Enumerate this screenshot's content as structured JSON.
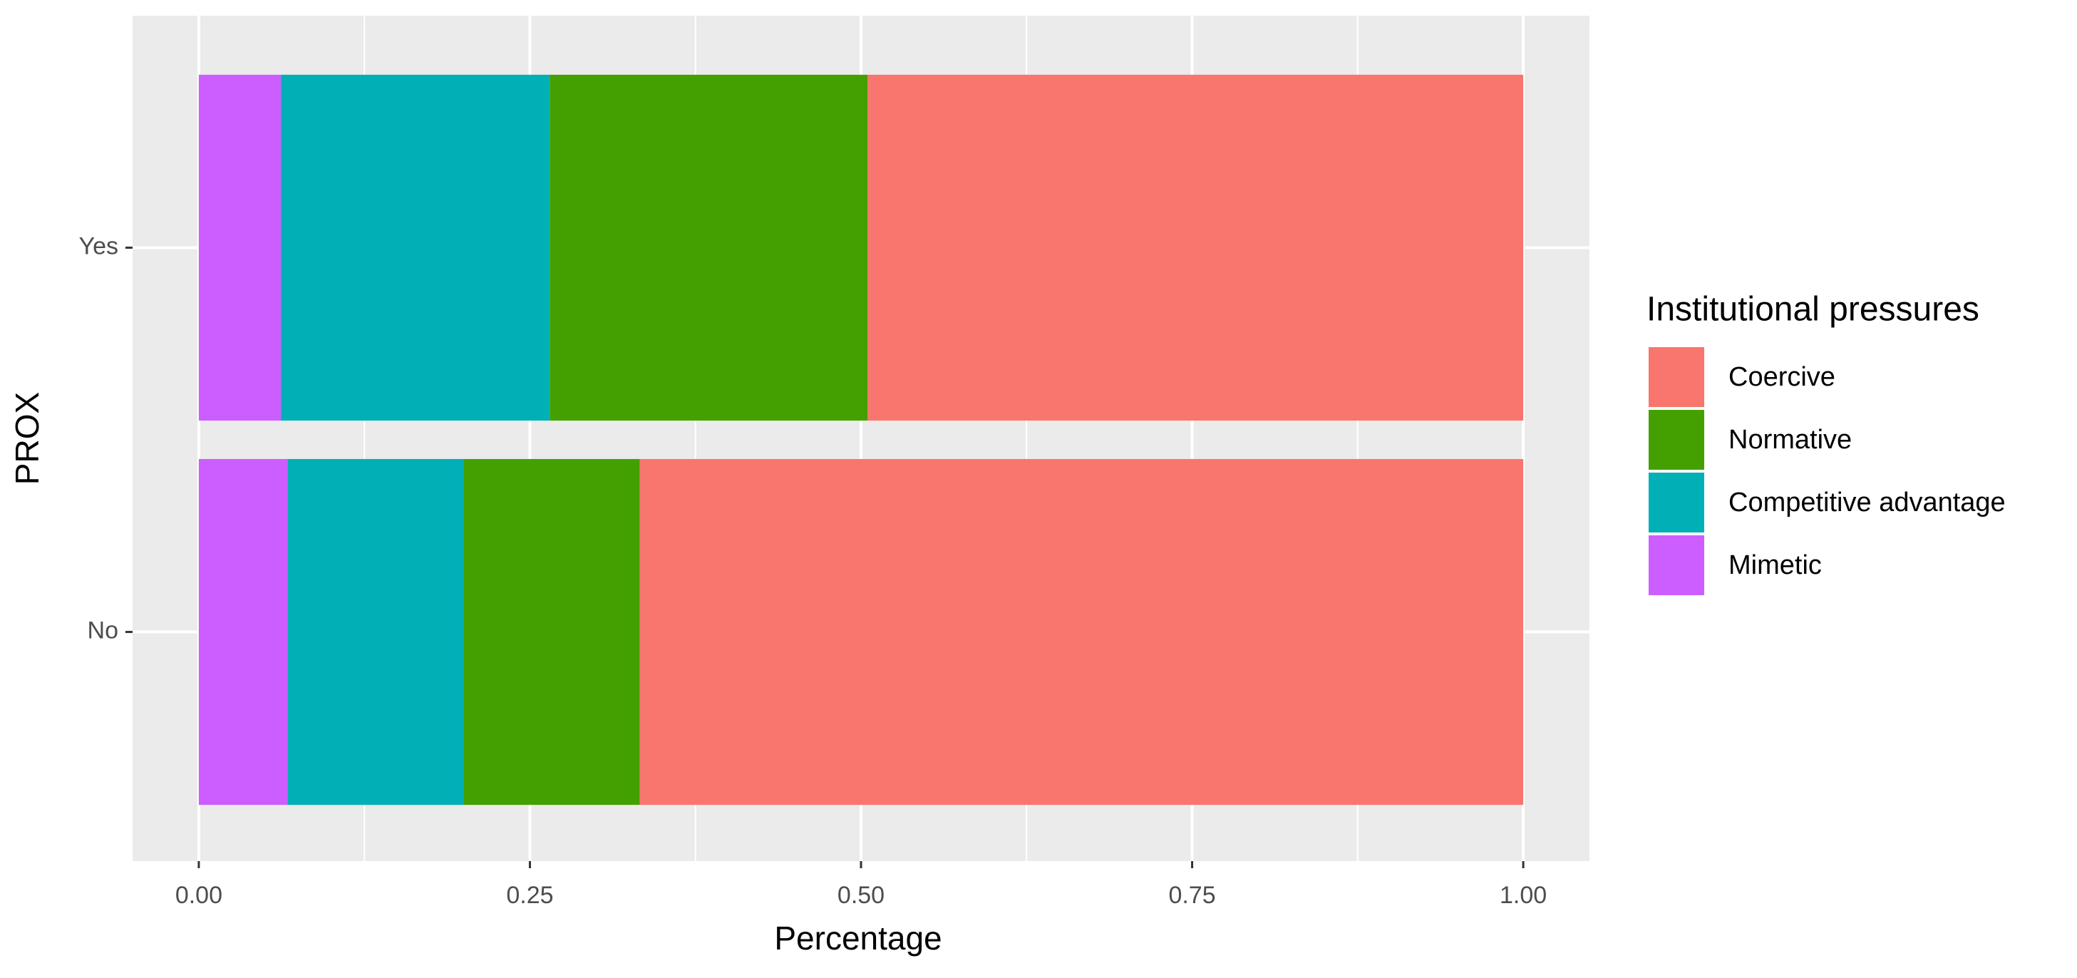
{
  "chart_data": {
    "type": "stacked-barh",
    "x_label": "Percentage",
    "y_label": "PROX",
    "categories": [
      "No",
      "Yes"
    ],
    "series": [
      {
        "name": "Coercive",
        "color": "#f8766d",
        "values": [
          0.667,
          0.495
        ]
      },
      {
        "name": "Normative",
        "color": "#44a000",
        "values": [
          0.133,
          0.24
        ]
      },
      {
        "name": "Competitive advantage",
        "color": "#00b0b6",
        "values": [
          0.133,
          0.203
        ]
      },
      {
        "name": "Mimetic",
        "color": "#cc5eff",
        "values": [
          0.067,
          0.062
        ]
      }
    ],
    "legend_title": "Institutional pressures",
    "legend_position": "right",
    "xlim": [
      -0.05,
      1.05
    ],
    "xticks": [
      {
        "value": 0,
        "label": "0.00"
      },
      {
        "value": 0.25,
        "label": "0.25"
      },
      {
        "value": 0.5,
        "label": "0.50"
      },
      {
        "value": 0.75,
        "label": "0.75"
      },
      {
        "value": 1,
        "label": "1.00"
      }
    ],
    "grid": true
  }
}
